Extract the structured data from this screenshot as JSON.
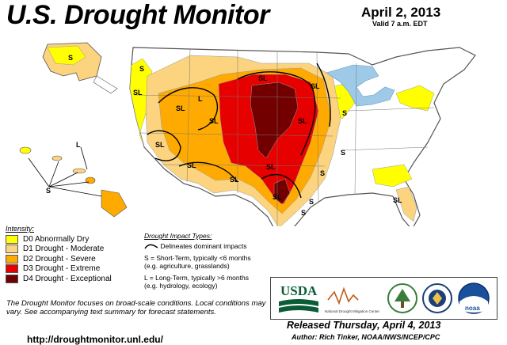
{
  "title": "U.S. Drought Monitor",
  "date": "April 2, 2013",
  "valid": "Valid 7 a.m. EDT",
  "intensity": {
    "heading": "Intensity:",
    "items": [
      {
        "label": "D0 Abnormally Dry",
        "color": "#FFFF00"
      },
      {
        "label": "D1 Drought - Moderate",
        "color": "#FCD37F"
      },
      {
        "label": "D2 Drought - Severe",
        "color": "#FFAA00"
      },
      {
        "label": "D3 Drought - Extreme",
        "color": "#E60000"
      },
      {
        "label": "D4 Drought - Exceptional",
        "color": "#730000"
      }
    ]
  },
  "impact": {
    "heading": "Drought Impact Types:",
    "delineates": "Delineates dominant impacts",
    "short_term": "S = Short-Term, typically <6 months",
    "short_term_eg": "(e.g. agriculture, grasslands)",
    "long_term": "L = Long-Term, typically >6 months",
    "long_term_eg": "(e.g. hydrology, ecology)"
  },
  "note": "The Drought Monitor focuses on broad-scale conditions. Local conditions may vary. See accompanying text summary for forecast statements.",
  "url": "http://droughtmonitor.unl.edu/",
  "released": "Released Thursday, April 4, 2013",
  "author": "Author: Rich Tinker, NOAA/NWS/NCEP/CPC",
  "logos": {
    "usda": "USDA",
    "ndmc": "National Drought Mitigation Center",
    "noaa": "noaa"
  },
  "map_labels": {
    "s": "S",
    "l": "L",
    "sl": "SL"
  },
  "colors": {
    "lakes": "#9ECAE8",
    "border": "#666666"
  }
}
